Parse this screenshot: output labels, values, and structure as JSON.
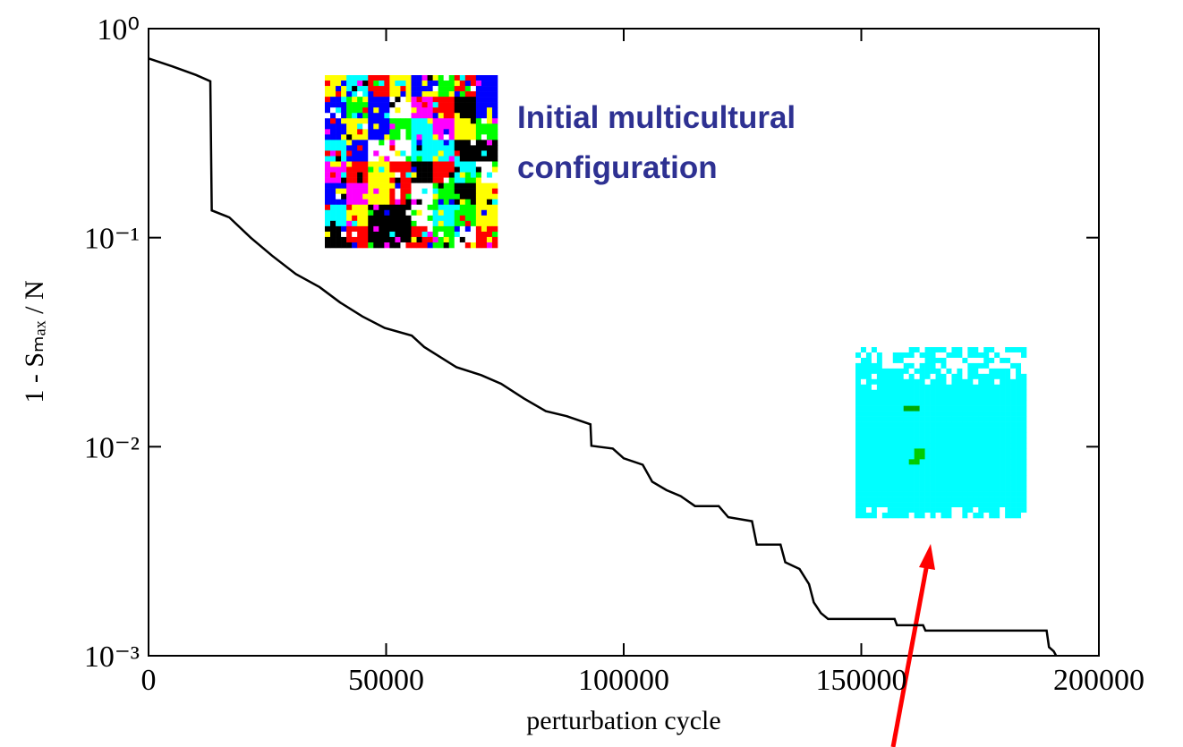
{
  "chart_data": {
    "type": "line",
    "x_label": "perturbation cycle",
    "y_label": "1 - Sₘₐₓ / N",
    "annotation": [
      "Initial multicultural",
      "configuration"
    ],
    "log_y": true,
    "xlim": [
      0,
      200000
    ],
    "xticks": [
      0,
      50000,
      100000,
      150000,
      200000
    ],
    "ylim": [
      0.001,
      1
    ],
    "yticks": [
      {
        "value": 1,
        "label": "10⁰"
      },
      {
        "value": 0.1,
        "label": "10⁻¹"
      },
      {
        "value": 0.01,
        "label": "10⁻²"
      },
      {
        "value": 0.001,
        "label": "10⁻³"
      }
    ],
    "series": [
      {
        "color": "#000000",
        "x": [
          0,
          5000,
          10000,
          13000,
          13300,
          17000,
          21500,
          26000,
          31000,
          36000,
          40300,
          45000,
          49700,
          55400,
          58000,
          64800,
          70000,
          74200,
          79000,
          83600,
          88000,
          93000,
          93200,
          97700,
          100000,
          104000,
          106000,
          109000,
          112000,
          115000,
          120000,
          122000,
          127000,
          128000,
          133000,
          134000,
          137000,
          139000,
          140000,
          141500,
          143000,
          157000,
          157500,
          163000,
          163500,
          189000,
          189500,
          190500,
          191000
        ],
        "values": [
          0.72,
          0.66,
          0.6,
          0.56,
          0.135,
          0.125,
          0.1,
          0.082,
          0.067,
          0.058,
          0.049,
          0.042,
          0.037,
          0.034,
          0.03,
          0.024,
          0.022,
          0.02,
          0.017,
          0.0148,
          0.014,
          0.0128,
          0.0101,
          0.0098,
          0.0088,
          0.0082,
          0.0068,
          0.0062,
          0.0058,
          0.0052,
          0.0052,
          0.0046,
          0.0044,
          0.0034,
          0.0034,
          0.0028,
          0.0026,
          0.0022,
          0.0018,
          0.0016,
          0.0015,
          0.0015,
          0.0014,
          0.0014,
          0.00132,
          0.00132,
          0.0011,
          0.00105,
          0.001
        ]
      }
    ]
  }
}
